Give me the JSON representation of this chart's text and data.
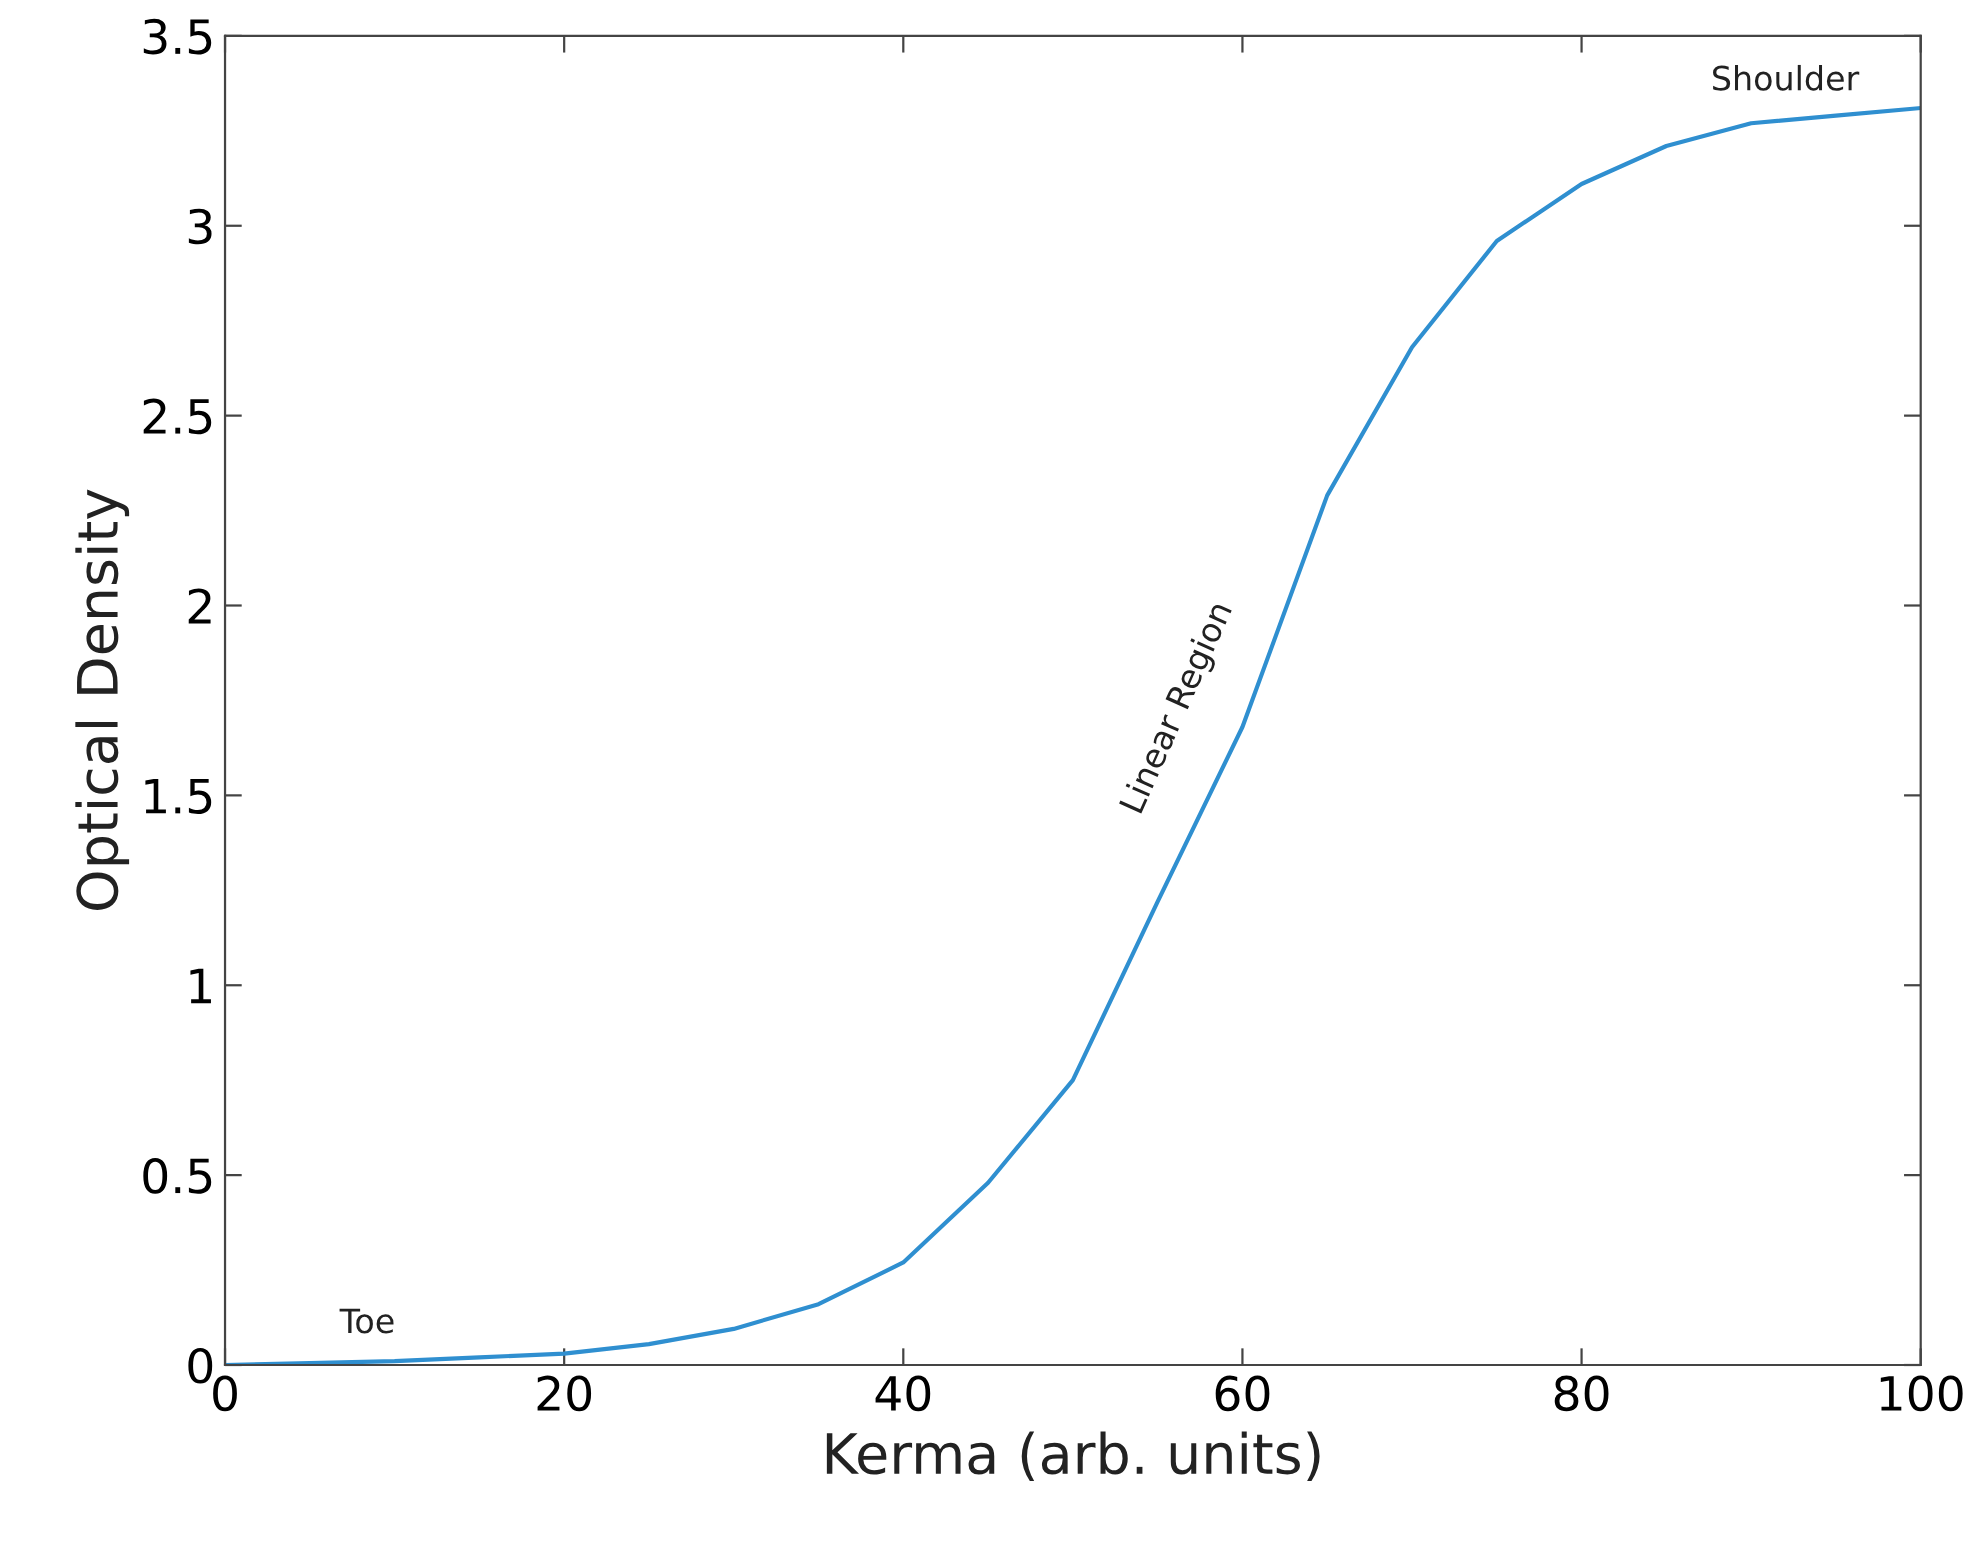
{
  "chart_data": {
    "type": "line",
    "xlabel": "Kerma (arb. units)",
    "ylabel": "Optical Density",
    "x": [
      0,
      5,
      10,
      15,
      20,
      25,
      30,
      35,
      40,
      45,
      50,
      55,
      60,
      65,
      70,
      75,
      80,
      85,
      90,
      95,
      100
    ],
    "series": [
      {
        "color": "#2f8fd0",
        "values": [
          0,
          0.005,
          0.01,
          0.02,
          0.03,
          0.055,
          0.095,
          0.16,
          0.27,
          0.48,
          0.75,
          1.22,
          1.68,
          2.29,
          2.68,
          2.96,
          3.11,
          3.21,
          3.27,
          3.29,
          3.31
        ]
      }
    ],
    "xlim": [
      0,
      100
    ],
    "xticks": [
      0,
      20,
      40,
      60,
      80,
      100
    ],
    "ylim": [
      0,
      3.5
    ],
    "yticks": [
      0,
      0.5,
      1,
      1.5,
      2,
      2.5,
      3,
      3.5
    ],
    "annotations": [
      "Toe",
      "Linear Region",
      "Shoulder"
    ],
    "grid": false,
    "legend": false
  }
}
